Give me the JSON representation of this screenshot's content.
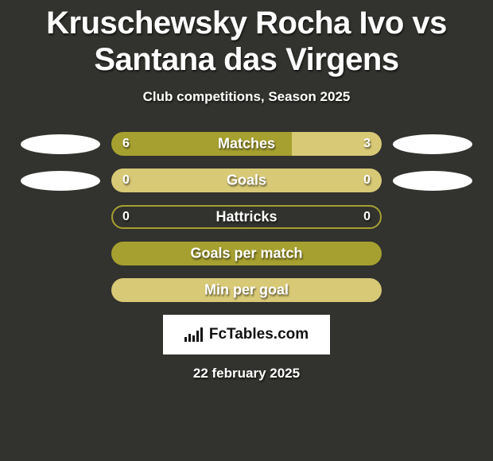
{
  "title": "Kruschewsky Rocha Ivo vs Santana das Virgens",
  "subtitle": "Club competitions, Season 2025",
  "date": "22 february 2025",
  "logo_text": "FcTables.com",
  "colors": {
    "background": "#32322e",
    "player_a": "#a6a030",
    "player_b": "#d8c976",
    "text": "#ffffff"
  },
  "stats": [
    {
      "label": "Matches",
      "a_value": "6",
      "b_value": "3",
      "a_num": 6,
      "b_num": 3,
      "show_left_oval": true,
      "show_right_oval": true,
      "fill_mode": "split"
    },
    {
      "label": "Goals",
      "a_value": "0",
      "b_value": "0",
      "a_num": 0,
      "b_num": 0,
      "show_left_oval": true,
      "show_right_oval": true,
      "fill_mode": "full_b"
    },
    {
      "label": "Hattricks",
      "a_value": "0",
      "b_value": "0",
      "a_num": 0,
      "b_num": 0,
      "show_left_oval": false,
      "show_right_oval": false,
      "fill_mode": "outline_a"
    },
    {
      "label": "Goals per match",
      "a_value": "",
      "b_value": "",
      "a_num": 0,
      "b_num": 0,
      "show_left_oval": false,
      "show_right_oval": false,
      "fill_mode": "full_a"
    },
    {
      "label": "Min per goal",
      "a_value": "",
      "b_value": "",
      "a_num": 0,
      "b_num": 0,
      "show_left_oval": false,
      "show_right_oval": false,
      "fill_mode": "full_b"
    }
  ]
}
